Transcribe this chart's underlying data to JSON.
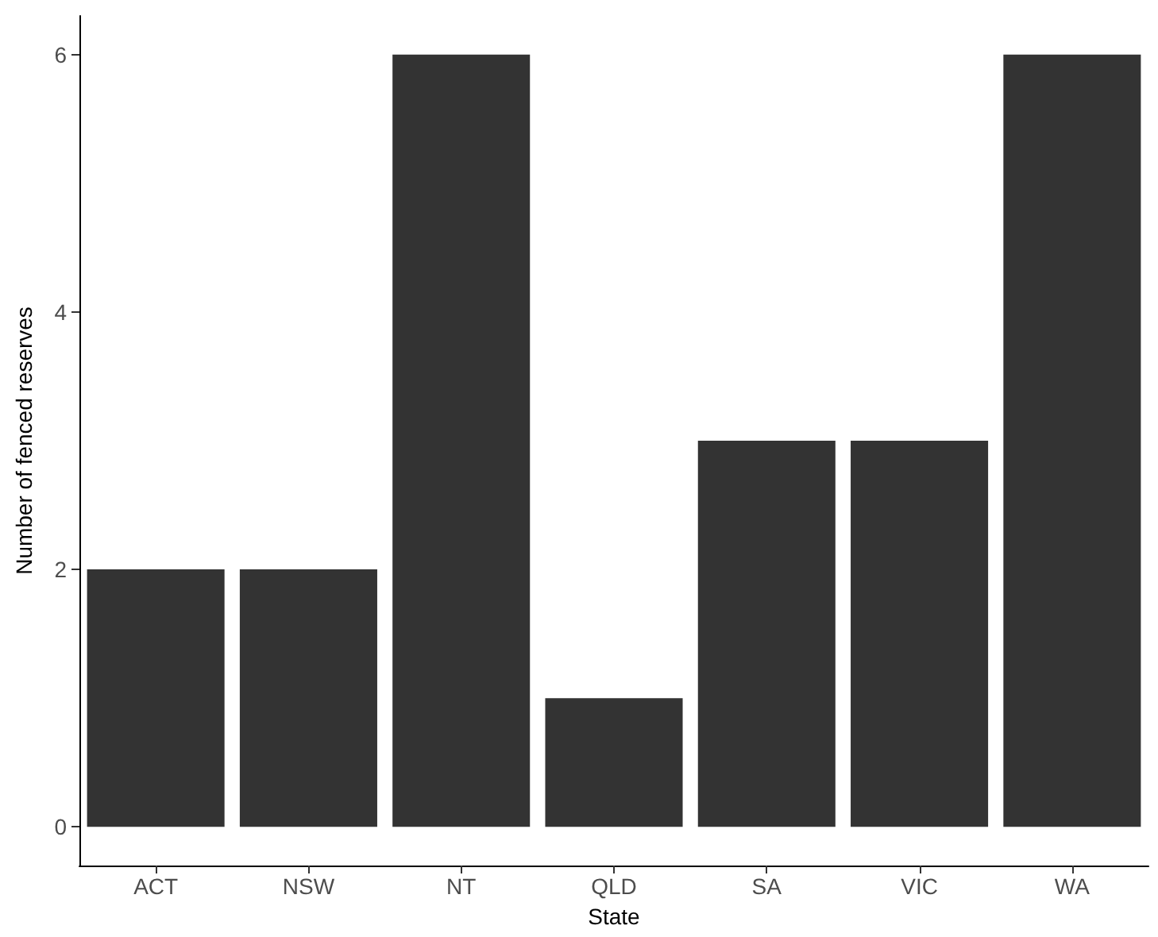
{
  "chart_data": {
    "type": "bar",
    "xlabel": "State",
    "ylabel": "Number of fenced reserves",
    "categories": [
      "ACT",
      "NSW",
      "NT",
      "QLD",
      "SA",
      "VIC",
      "WA"
    ],
    "values": [
      2,
      2,
      6,
      1,
      3,
      3,
      6
    ],
    "color": "#333333",
    "ylim": [
      -0.3,
      6.3
    ],
    "yticks": [
      0,
      2,
      4,
      6
    ],
    "grid": false
  }
}
